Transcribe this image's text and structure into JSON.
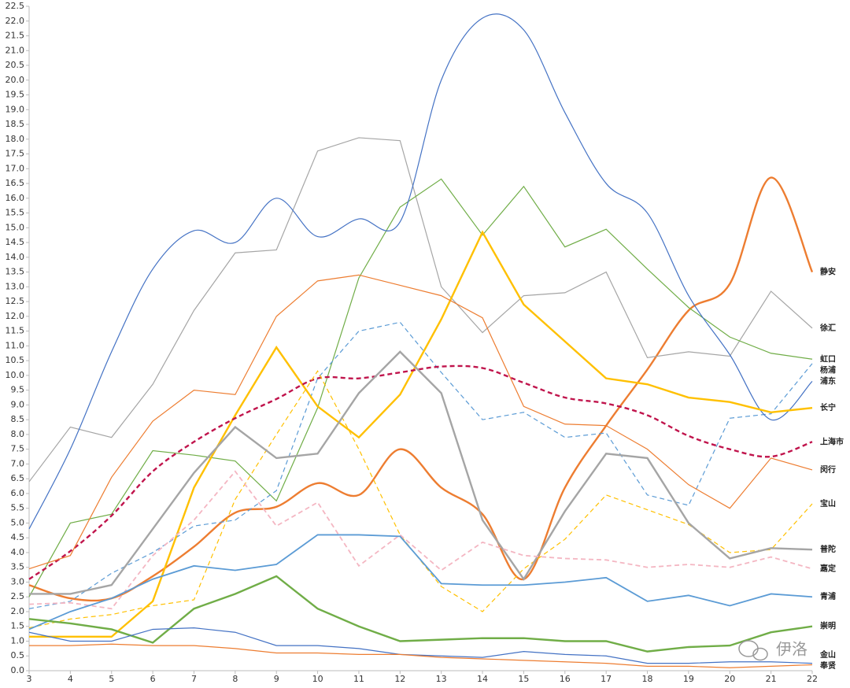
{
  "chart_data": {
    "type": "line",
    "watermark": "伊洛",
    "x": [
      3,
      4,
      5,
      6,
      7,
      8,
      9,
      10,
      11,
      12,
      13,
      14,
      15,
      16,
      17,
      18,
      19,
      20,
      21,
      22
    ],
    "xlim": [
      3,
      22
    ],
    "xticks": [
      3,
      4,
      5,
      6,
      7,
      8,
      9,
      10,
      11,
      12,
      13,
      14,
      15,
      16,
      17,
      18,
      19,
      20,
      21,
      22
    ],
    "ylim": [
      0,
      22.5
    ],
    "yticks": [
      {
        "value": 0,
        "label": "0.0"
      },
      0.5,
      {
        "value": 1,
        "label": "1.0"
      },
      1.5,
      {
        "value": 2,
        "label": "2.0"
      },
      2.5,
      {
        "value": 3,
        "label": "3.0"
      },
      3.5,
      {
        "value": 4,
        "label": "4.0"
      },
      4.5,
      {
        "value": 5,
        "label": "5.0"
      },
      5.5,
      {
        "value": 6,
        "label": "6.0"
      },
      6.5,
      {
        "value": 7,
        "label": "7.0"
      },
      7.5,
      {
        "value": 8,
        "label": "8.0"
      },
      8.5,
      {
        "value": 9,
        "label": "9.0"
      },
      9.5,
      {
        "value": 10,
        "label": "10.0"
      },
      10.5,
      {
        "value": 11,
        "label": "11.0"
      },
      11.5,
      {
        "value": 12,
        "label": "12.0"
      },
      12.5,
      {
        "value": 13,
        "label": "13.0"
      },
      13.5,
      {
        "value": 14,
        "label": "14.0"
      },
      14.5,
      {
        "value": 15,
        "label": "15.0"
      },
      15.5,
      {
        "value": 16,
        "label": "16.0"
      },
      16.5,
      {
        "value": 17,
        "label": "17.0"
      },
      17.5,
      {
        "value": 18,
        "label": "18.0"
      },
      18.5,
      {
        "value": 19,
        "label": "19.0"
      },
      19.5,
      {
        "value": 20,
        "label": "20.0"
      },
      20.5,
      {
        "value": 21,
        "label": "21.0"
      },
      21.5,
      {
        "value": 22,
        "label": "22.0"
      },
      22.5
    ],
    "grid": false,
    "series": [
      {
        "name": "静安",
        "color": "#ed7d31",
        "weight": "thick",
        "line_style": "solid",
        "smooth": true,
        "values": [
          2.9,
          2.45,
          2.45,
          3.2,
          4.2,
          5.35,
          5.55,
          6.35,
          5.95,
          7.5,
          6.2,
          5.3,
          3.1,
          6.2,
          8.3,
          10.2,
          12.2,
          13.1,
          16.7,
          13.5
        ]
      },
      {
        "name": "徐汇",
        "color": "#a5a5a5",
        "weight": "thin",
        "line_style": "solid",
        "smooth": false,
        "values": [
          6.4,
          8.25,
          7.9,
          9.7,
          12.2,
          14.15,
          14.25,
          17.6,
          18.05,
          17.95,
          13.0,
          11.45,
          12.7,
          12.8,
          13.5,
          10.6,
          10.8,
          10.65,
          12.85,
          11.6
        ]
      },
      {
        "name": "虹口",
        "color": "#70ad47",
        "weight": "thin",
        "line_style": "solid",
        "smooth": false,
        "values": [
          2.5,
          5.0,
          5.3,
          7.45,
          7.3,
          7.1,
          5.75,
          8.9,
          13.3,
          15.7,
          16.65,
          14.75,
          16.4,
          14.35,
          14.95,
          13.6,
          12.3,
          11.3,
          10.75,
          10.55
        ]
      },
      {
        "name": "杨浦",
        "color": "#5b9bd5",
        "weight": "thin",
        "line_style": "dashed",
        "smooth": false,
        "values": [
          2.1,
          2.35,
          3.3,
          4.0,
          4.9,
          5.1,
          6.1,
          9.9,
          11.5,
          11.8,
          10.1,
          8.5,
          8.75,
          7.9,
          8.05,
          5.95,
          5.6,
          8.55,
          8.7,
          10.4
        ]
      },
      {
        "name": "浦东",
        "color": "#4472c4",
        "weight": "thin",
        "line_style": "solid",
        "smooth": true,
        "values": [
          4.8,
          7.5,
          10.8,
          13.6,
          14.9,
          14.5,
          16.0,
          14.7,
          15.3,
          15.2,
          20.0,
          22.1,
          21.7,
          18.9,
          16.5,
          15.5,
          12.7,
          10.7,
          8.5,
          9.8
        ]
      },
      {
        "name": "长宁",
        "color": "#ffc000",
        "weight": "thick",
        "line_style": "solid",
        "smooth": false,
        "values": [
          1.15,
          1.15,
          1.15,
          2.35,
          6.2,
          8.65,
          10.95,
          8.95,
          7.9,
          9.35,
          11.9,
          14.85,
          12.4,
          11.15,
          9.9,
          9.7,
          9.25,
          9.1,
          8.75,
          8.9
        ]
      },
      {
        "name": "上海市",
        "color": "#c0144c",
        "weight": "thick",
        "line_style": "dashed",
        "smooth": true,
        "values": [
          3.1,
          4.05,
          5.25,
          6.75,
          7.75,
          8.55,
          9.2,
          9.9,
          9.9,
          10.1,
          10.3,
          10.25,
          9.75,
          9.25,
          9.05,
          8.65,
          7.95,
          7.5,
          7.25,
          7.75
        ]
      },
      {
        "name": "闵行",
        "color": "#ed7d31",
        "weight": "thin",
        "line_style": "solid",
        "smooth": false,
        "values": [
          3.45,
          3.9,
          6.55,
          8.45,
          9.5,
          9.35,
          12.0,
          13.2,
          13.4,
          13.05,
          12.7,
          11.95,
          8.95,
          8.35,
          8.3,
          7.5,
          6.3,
          5.5,
          7.2,
          6.8
        ]
      },
      {
        "name": "宝山",
        "color": "#ffc000",
        "weight": "thin",
        "line_style": "dashed",
        "smooth": false,
        "values": [
          1.45,
          1.75,
          1.9,
          2.2,
          2.4,
          5.8,
          8.0,
          10.15,
          7.5,
          4.6,
          2.85,
          2.0,
          3.45,
          4.45,
          5.95,
          5.45,
          4.95,
          4.0,
          4.1,
          5.65
        ]
      },
      {
        "name": "普陀",
        "color": "#a5a5a5",
        "weight": "thick",
        "line_style": "solid",
        "smooth": false,
        "values": [
          2.6,
          2.6,
          2.9,
          4.8,
          6.7,
          8.25,
          7.2,
          7.35,
          9.4,
          10.8,
          9.4,
          5.1,
          3.1,
          5.4,
          7.35,
          7.2,
          5.0,
          3.8,
          4.15,
          4.1
        ]
      },
      {
        "name": "嘉定",
        "color": "#f4b6c2",
        "weight": "medium",
        "line_style": "dashed",
        "smooth": false,
        "values": [
          2.25,
          2.3,
          2.1,
          3.9,
          5.1,
          6.75,
          4.9,
          5.7,
          3.55,
          4.6,
          3.4,
          4.35,
          3.9,
          3.8,
          3.75,
          3.5,
          3.6,
          3.5,
          3.85,
          3.45
        ]
      },
      {
        "name": "青浦",
        "color": "#5b9bd5",
        "weight": "medium",
        "line_style": "solid",
        "smooth": false,
        "values": [
          1.4,
          2.0,
          2.45,
          3.1,
          3.55,
          3.4,
          3.6,
          4.6,
          4.6,
          4.55,
          2.95,
          2.9,
          2.9,
          3.0,
          3.15,
          2.35,
          2.55,
          2.2,
          2.6,
          2.5
        ]
      },
      {
        "name": "崇明",
        "color": "#70ad47",
        "weight": "thick",
        "line_style": "solid",
        "smooth": false,
        "values": [
          1.75,
          1.6,
          1.4,
          0.95,
          2.1,
          2.6,
          3.2,
          2.1,
          1.5,
          1.0,
          1.05,
          1.1,
          1.1,
          1.0,
          1.0,
          0.65,
          0.8,
          0.85,
          1.3,
          1.5
        ]
      },
      {
        "name": "金山",
        "color": "#4472c4",
        "weight": "thin",
        "line_style": "solid",
        "smooth": false,
        "values": [
          1.3,
          1.0,
          1.0,
          1.4,
          1.45,
          1.3,
          0.85,
          0.85,
          0.75,
          0.55,
          0.5,
          0.45,
          0.65,
          0.55,
          0.5,
          0.25,
          0.25,
          0.3,
          0.3,
          0.25
        ]
      },
      {
        "name": "奉贤",
        "color": "#ed7d31",
        "weight": "thin",
        "line_style": "solid",
        "smooth": false,
        "values": [
          0.85,
          0.85,
          0.9,
          0.85,
          0.85,
          0.75,
          0.6,
          0.6,
          0.55,
          0.55,
          0.45,
          0.4,
          0.35,
          0.3,
          0.25,
          0.15,
          0.15,
          0.1,
          0.15,
          0.2
        ]
      }
    ]
  }
}
